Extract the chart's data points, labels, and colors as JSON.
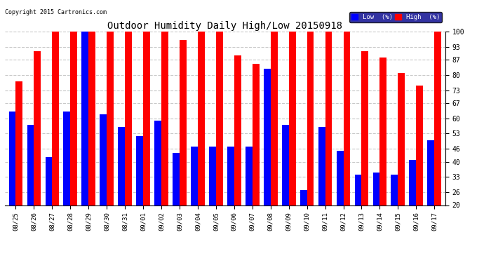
{
  "title": "Outdoor Humidity Daily High/Low 20150918",
  "copyright": "Copyright 2015 Cartronics.com",
  "labels": [
    "08/25",
    "08/26",
    "08/27",
    "08/28",
    "08/29",
    "08/30",
    "08/31",
    "09/01",
    "09/02",
    "09/03",
    "09/04",
    "09/05",
    "09/06",
    "09/07",
    "09/08",
    "09/09",
    "09/10",
    "09/11",
    "09/12",
    "09/13",
    "09/14",
    "09/15",
    "09/16",
    "09/17"
  ],
  "high": [
    77,
    91,
    100,
    100,
    100,
    100,
    100,
    100,
    100,
    96,
    100,
    100,
    89,
    85,
    100,
    100,
    100,
    100,
    100,
    91,
    88,
    81,
    75,
    100
  ],
  "low": [
    63,
    57,
    42,
    63,
    100,
    62,
    56,
    52,
    59,
    44,
    47,
    47,
    47,
    47,
    83,
    57,
    27,
    56,
    45,
    34,
    35,
    34,
    41,
    50
  ],
  "high_color": "#ff0000",
  "low_color": "#0000ff",
  "bg_color": "#ffffff",
  "plot_bg_color": "#ffffff",
  "grid_color": "#c8c8c8",
  "ylim_min": 20,
  "ylim_max": 100,
  "yticks": [
    20,
    26,
    33,
    40,
    46,
    53,
    60,
    67,
    73,
    80,
    87,
    93,
    100
  ],
  "bar_width": 0.38,
  "legend_low_label": "Low  (%)",
  "legend_high_label": "High  (%)"
}
